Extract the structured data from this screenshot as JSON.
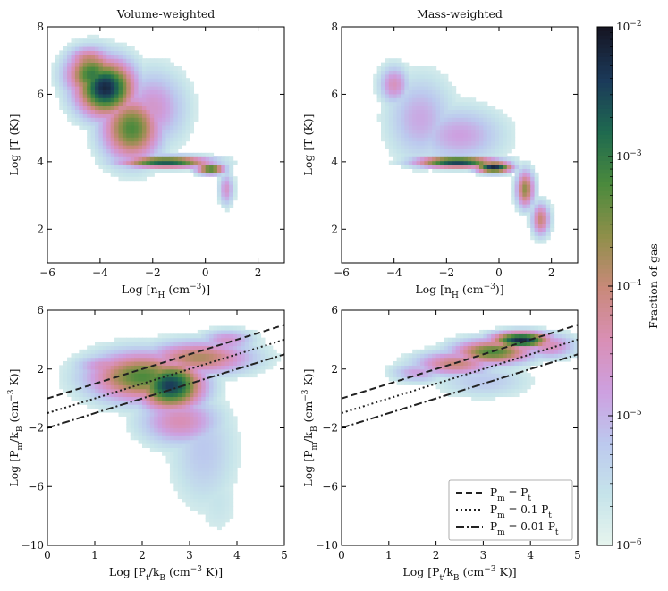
{
  "colorbar": {
    "label": "Fraction of gas",
    "tick_labels": [
      "10",
      "10",
      "10",
      "10",
      "10"
    ],
    "tick_exponents": [
      "−2",
      "−3",
      "−4",
      "−5",
      "−6"
    ],
    "tick_values_log": [
      -2,
      -3,
      -4,
      -5,
      -6
    ],
    "range_log": [
      -6,
      -2
    ],
    "colors": [
      "#e8f5ee",
      "#c6e4ea",
      "#bcc9ee",
      "#cda0e0",
      "#d98fb5",
      "#c9897a",
      "#8f8f4a",
      "#4b8a3d",
      "#1f6a4f",
      "#1b3a5a",
      "#161624"
    ]
  },
  "chart_data": [
    {
      "type": "heatmap",
      "title": "Volume-weighted",
      "xlabel": "Log [n",
      "xlabel_sub": "H",
      "xlabel_tail": " (cm",
      "xlabel_sup": "−3",
      "xlabel_end": ")]",
      "ylabel": "Log [T (K)]",
      "xlim": [
        -6,
        3
      ],
      "ylim": [
        1,
        8
      ],
      "xticks": [
        -6,
        -4,
        -2,
        0,
        2
      ],
      "xtick_labels": [
        "−6",
        "−4",
        "−2",
        "0",
        "2"
      ],
      "yticks": [
        2,
        4,
        6,
        8
      ],
      "ytick_labels": [
        "2",
        "4",
        "6",
        "8"
      ],
      "blobs": [
        {
          "x": -3.8,
          "y": 6.2,
          "sx": 0.8,
          "sy": 0.6,
          "level": 0.95
        },
        {
          "x": -4.3,
          "y": 6.6,
          "sx": 0.7,
          "sy": 0.5,
          "level": 0.75
        },
        {
          "x": -2.8,
          "y": 5.0,
          "sx": 0.8,
          "sy": 0.7,
          "level": 0.7
        },
        {
          "x": -1.5,
          "y": 4.0,
          "sx": 1.2,
          "sy": 0.12,
          "level": 0.85
        },
        {
          "x": 0.2,
          "y": 3.8,
          "sx": 0.4,
          "sy": 0.12,
          "level": 0.75
        },
        {
          "x": 0.8,
          "y": 3.2,
          "sx": 0.2,
          "sy": 0.35,
          "level": 0.35
        },
        {
          "x": -4.4,
          "y": 7.0,
          "sx": 0.6,
          "sy": 0.3,
          "level": 0.55
        },
        {
          "x": -2.0,
          "y": 5.6,
          "sx": 0.9,
          "sy": 0.8,
          "level": 0.35
        }
      ]
    },
    {
      "type": "heatmap",
      "title": "Mass-weighted",
      "xlabel": "Log [n",
      "xlabel_sub": "H",
      "xlabel_tail": " (cm",
      "xlabel_sup": "−3",
      "xlabel_end": ")]",
      "ylabel": "Log [T (K)]",
      "xlim": [
        -6,
        3
      ],
      "ylim": [
        1,
        8
      ],
      "xticks": [
        -6,
        -4,
        -2,
        0,
        2
      ],
      "xtick_labels": [
        "−6",
        "−4",
        "−2",
        "0",
        "2"
      ],
      "yticks": [
        2,
        4,
        6,
        8
      ],
      "ytick_labels": [
        "2",
        "4",
        "6",
        "8"
      ],
      "blobs": [
        {
          "x": -4.0,
          "y": 6.3,
          "sx": 0.4,
          "sy": 0.4,
          "level": 0.38
        },
        {
          "x": -3.0,
          "y": 5.3,
          "sx": 0.9,
          "sy": 0.9,
          "level": 0.28
        },
        {
          "x": -1.6,
          "y": 4.0,
          "sx": 1.1,
          "sy": 0.12,
          "level": 0.9
        },
        {
          "x": -0.2,
          "y": 3.85,
          "sx": 0.5,
          "sy": 0.12,
          "level": 0.95
        },
        {
          "x": 1.0,
          "y": 3.2,
          "sx": 0.25,
          "sy": 0.4,
          "level": 0.6
        },
        {
          "x": 1.6,
          "y": 2.3,
          "sx": 0.25,
          "sy": 0.35,
          "level": 0.5
        },
        {
          "x": -1.5,
          "y": 4.8,
          "sx": 1.2,
          "sy": 0.6,
          "level": 0.3
        }
      ]
    },
    {
      "type": "heatmap",
      "xlabel": "Log [P",
      "xlabel_sub": "t",
      "xlabel_tail": "/k",
      "xlabel_sub2": "B",
      "xlabel_tail2": " (cm",
      "xlabel_sup": "−3",
      "xlabel_end": " K)]",
      "ylabel": "Log [P",
      "ylabel_sub": "m",
      "ylabel_tail": "/k",
      "ylabel_sub2": "B",
      "ylabel_tail2": " (cm",
      "ylabel_sup": "−3",
      "ylabel_end": " K)]",
      "xlim": [
        0,
        5
      ],
      "ylim": [
        -10,
        6
      ],
      "xticks": [
        0,
        1,
        2,
        3,
        4,
        5
      ],
      "xtick_labels": [
        "0",
        "1",
        "2",
        "3",
        "4",
        "5"
      ],
      "yticks": [
        -10,
        -6,
        -2,
        2,
        6
      ],
      "ytick_labels": [
        "−10",
        "−6",
        "−2",
        "2",
        "6"
      ],
      "lines": [
        {
          "name": "Pm = Pt",
          "offset": 0,
          "style": "dashed"
        },
        {
          "name": "Pm = 0.1 Pt",
          "offset": -1,
          "style": "dotted"
        },
        {
          "name": "Pm = 0.01 Pt",
          "offset": -2,
          "style": "dashdot"
        }
      ],
      "blobs": [
        {
          "x": 2.6,
          "y": 0.9,
          "sx": 0.5,
          "sy": 1.2,
          "level": 0.9
        },
        {
          "x": 2.0,
          "y": 1.5,
          "sx": 0.8,
          "sy": 1.2,
          "level": 0.7
        },
        {
          "x": 3.2,
          "y": 2.8,
          "sx": 0.8,
          "sy": 0.8,
          "level": 0.55
        },
        {
          "x": 1.3,
          "y": 2.2,
          "sx": 0.5,
          "sy": 0.6,
          "level": 0.4
        },
        {
          "x": 3.3,
          "y": -3.5,
          "sx": 0.5,
          "sy": 2.8,
          "level": 0.2
        },
        {
          "x": 3.6,
          "y": -7.0,
          "sx": 0.35,
          "sy": 1.8,
          "level": 0.1
        },
        {
          "x": 2.8,
          "y": -1.5,
          "sx": 0.6,
          "sy": 1.2,
          "level": 0.4
        },
        {
          "x": 3.8,
          "y": 4.0,
          "sx": 0.4,
          "sy": 0.5,
          "level": 0.35
        }
      ]
    },
    {
      "type": "heatmap",
      "xlabel": "Log [P",
      "xlabel_sub": "t",
      "xlabel_tail": "/k",
      "xlabel_sub2": "B",
      "xlabel_tail2": " (cm",
      "xlabel_sup": "−3",
      "xlabel_end": " K)]",
      "ylabel": "Log [P",
      "ylabel_sub": "m",
      "ylabel_tail": "/k",
      "ylabel_sub2": "B",
      "ylabel_tail2": " (cm",
      "ylabel_sup": "−3",
      "ylabel_end": " K)]",
      "xlim": [
        0,
        5
      ],
      "ylim": [
        -10,
        6
      ],
      "xticks": [
        0,
        1,
        2,
        3,
        4,
        5
      ],
      "xtick_labels": [
        "0",
        "1",
        "2",
        "3",
        "4",
        "5"
      ],
      "yticks": [
        -10,
        -6,
        -2,
        2,
        6
      ],
      "ytick_labels": [
        "−10",
        "−6",
        "−2",
        "2",
        "6"
      ],
      "lines": [
        {
          "name": "Pm = Pt",
          "offset": 0,
          "style": "dashed"
        },
        {
          "name": "Pm = 0.1 Pt",
          "offset": -1,
          "style": "dotted"
        },
        {
          "name": "Pm = 0.01 Pt",
          "offset": -2,
          "style": "dashdot"
        }
      ],
      "legend": {
        "location": "lower-right",
        "entries": [
          {
            "label": "P",
            "sub": "m",
            "mid": " = P",
            "sub2": "t",
            "style": "dashed"
          },
          {
            "label": "P",
            "sub": "m",
            "mid": " = 0.1 P",
            "sub2": "t",
            "style": "dotted"
          },
          {
            "label": "P",
            "sub": "m",
            "mid": " = 0.01 P",
            "sub2": "t",
            "style": "dashdot"
          }
        ]
      },
      "blobs": [
        {
          "x": 3.8,
          "y": 4.0,
          "sx": 0.45,
          "sy": 0.4,
          "level": 0.95
        },
        {
          "x": 3.2,
          "y": 3.2,
          "sx": 0.6,
          "sy": 0.6,
          "level": 0.7
        },
        {
          "x": 2.4,
          "y": 2.4,
          "sx": 0.6,
          "sy": 0.6,
          "level": 0.5
        },
        {
          "x": 1.6,
          "y": 1.8,
          "sx": 0.4,
          "sy": 0.5,
          "level": 0.3
        },
        {
          "x": 4.4,
          "y": 3.6,
          "sx": 0.4,
          "sy": 0.6,
          "level": 0.4
        },
        {
          "x": 3.0,
          "y": 1.2,
          "sx": 0.7,
          "sy": 0.8,
          "level": 0.2
        }
      ]
    }
  ]
}
